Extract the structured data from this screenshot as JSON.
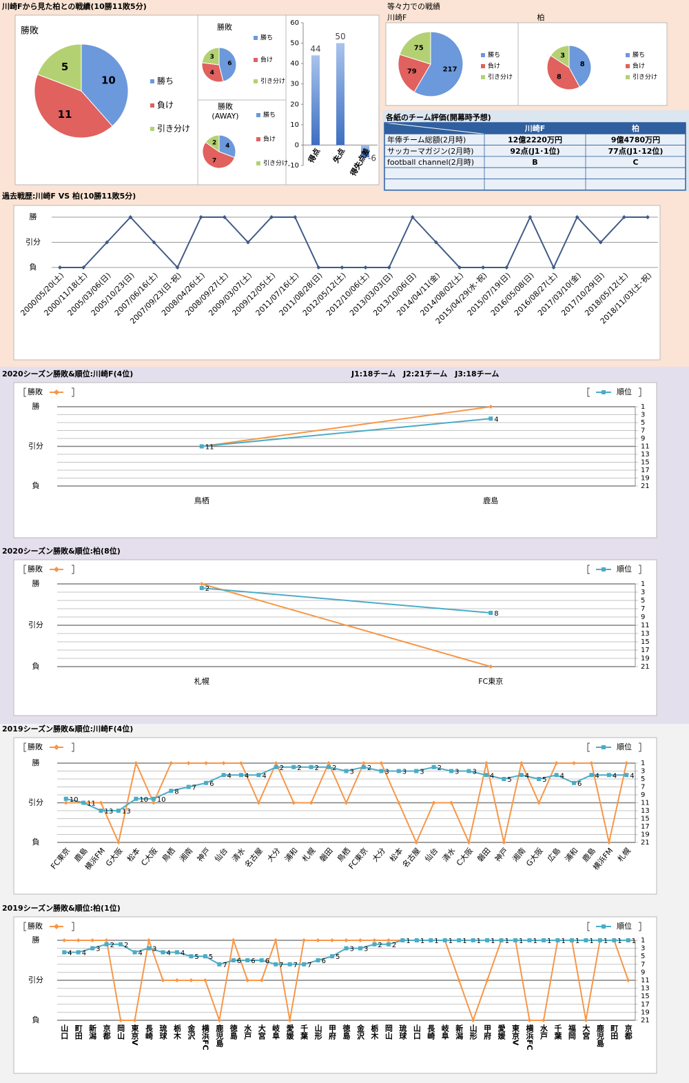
{
  "headings": [
    "川崎Fから見た柏との戦績(10勝11敗5分)",
    "等々力での戦績"
  ],
  "table": {
    "title": "各紙のチーム評価(開幕時予想)",
    "columns": [
      "川崎F",
      "柏"
    ],
    "rows": [
      [
        "年俸チーム総額(2月時)",
        "12億2220万円",
        "9億4780万円"
      ],
      [
        "サッカーマガジン(2月時)",
        "92点(J1･1位)",
        "77点(J1･12位)"
      ],
      [
        "football channel(2月時)",
        "B",
        "C"
      ]
    ]
  },
  "chart_data": [
    {
      "type": "pie",
      "title": "勝敗",
      "categories": [
        "勝ち",
        "負け",
        "引き分け"
      ],
      "values": [
        10,
        11,
        5
      ],
      "colors": [
        "#6c98dc",
        "#e0615e",
        "#b3d173"
      ]
    },
    {
      "type": "pie",
      "title": "勝敗",
      "categories": [
        "勝ち",
        "負け",
        "引き分け"
      ],
      "values": [
        6,
        4,
        3
      ],
      "colors": [
        "#6c98dc",
        "#e0615e",
        "#b3d173"
      ]
    },
    {
      "type": "pie",
      "title": "勝敗",
      "subtitle": "(AWAY)",
      "categories": [
        "勝ち",
        "負け",
        "引き分け"
      ],
      "values": [
        4,
        7,
        2
      ],
      "colors": [
        "#6c98dc",
        "#e0615e",
        "#b3d173"
      ]
    },
    {
      "type": "bar",
      "categories": [
        "得点",
        "失点",
        "得失点差"
      ],
      "values": [
        44,
        50,
        -6
      ],
      "color": "#4f81bd",
      "ylim": [
        -10,
        60
      ],
      "yticks": [
        -10,
        0,
        10,
        20,
        30,
        40,
        50,
        60
      ],
      "grid": false
    },
    {
      "type": "pie",
      "title": "川崎F",
      "categories": [
        "勝ち",
        "負け",
        "引き分け"
      ],
      "values": [
        217,
        79,
        75
      ],
      "colors": [
        "#6c98dc",
        "#e0615e",
        "#b3d173"
      ]
    },
    {
      "type": "pie",
      "title": "柏",
      "categories": [
        "勝ち",
        "負け",
        "引き分け"
      ],
      "values": [
        8,
        8,
        3
      ],
      "colors": [
        "#6c98dc",
        "#e0615e",
        "#b3d173"
      ]
    },
    {
      "type": "line",
      "title": "過去戦歴:川崎F VS 柏(10勝11敗5分)",
      "categories": [
        "2000/05/20(土)",
        "2000/11/18(土)",
        "2005/03/06(日)",
        "2005/10/23(日)",
        "2007/06/16(土)",
        "2007/09/23(日･祝)",
        "2008/04/26(土)",
        "2008/09/27(土)",
        "2009/03/07(土)",
        "2009/12/05(土)",
        "2011/07/16(土)",
        "2011/08/28(日)",
        "2012/05/12(土)",
        "2012/10/06(土)",
        "2013/03/03(日)",
        "2013/10/06(日)",
        "2014/04/11(金)",
        "2014/08/02(土)",
        "2015/04/29(水･祝)",
        "2015/07/19(日)",
        "2016/05/08(日)",
        "2016/08/27(土)",
        "2017/03/10(金)",
        "2017/10/29(日)",
        "2018/05/12(土)",
        "2018/11/03(土･祝)"
      ],
      "values": [
        -1,
        -1,
        0,
        1,
        0,
        -1,
        1,
        1,
        0,
        1,
        1,
        -1,
        -1,
        -1,
        -1,
        1,
        0,
        -1,
        -1,
        -1,
        1,
        -1,
        1,
        0,
        1,
        1
      ],
      "color": "#3f5a86",
      "ylim": [
        -1,
        1
      ],
      "yticks": [
        {
          "value": 1,
          "label": "勝"
        },
        {
          "value": 0,
          "label": "引分"
        },
        {
          "value": -1,
          "label": "負"
        }
      ],
      "grid": true
    },
    {
      "type": "season",
      "title": "2020シーズン勝敗&順位:川崎F(4位)",
      "annotation": "J1:18チーム　J2:21チーム　J3:18チーム",
      "categories": [
        "鳥栖",
        "鹿島"
      ],
      "series": [
        {
          "name": "勝敗",
          "color": "#f79646",
          "values": [
            0,
            1
          ]
        },
        {
          "name": "順位",
          "color": "#4bacc6",
          "values": [
            11,
            4
          ],
          "axis": "y2"
        }
      ],
      "ylim": [
        -1,
        1
      ],
      "yticks": [
        {
          "value": 1,
          "label": "勝"
        },
        {
          "value": 0,
          "label": "引分"
        },
        {
          "value": -1,
          "label": "負"
        }
      ],
      "y2lim": [
        1,
        21
      ],
      "y2_inverted": true,
      "y2ticks": [
        1,
        3,
        5,
        7,
        9,
        11,
        13,
        15,
        17,
        19,
        21
      ]
    },
    {
      "type": "season",
      "title": "2020シーズン勝敗&順位:柏(8位)",
      "categories": [
        "札幌",
        "FC東京"
      ],
      "series": [
        {
          "name": "勝敗",
          "color": "#f79646",
          "values": [
            1,
            -1
          ]
        },
        {
          "name": "順位",
          "color": "#4bacc6",
          "values": [
            2,
            8
          ],
          "axis": "y2"
        }
      ],
      "ylim": [
        -1,
        1
      ],
      "yticks": [
        {
          "value": 1,
          "label": "勝"
        },
        {
          "value": 0,
          "label": "引分"
        },
        {
          "value": -1,
          "label": "負"
        }
      ],
      "y2lim": [
        1,
        21
      ],
      "y2_inverted": true,
      "y2ticks": [
        1,
        3,
        5,
        7,
        9,
        11,
        13,
        15,
        17,
        19,
        21
      ]
    },
    {
      "type": "season",
      "title": "2019シーズン勝敗&順位:川崎F(4位)",
      "categories": [
        "FC東京",
        "鹿島",
        "横浜FM",
        "G大阪",
        "松本",
        "C大阪",
        "鳥栖",
        "湘南",
        "神戸",
        "仙台",
        "清水",
        "名古屋",
        "大分",
        "浦和",
        "札幌",
        "磐田",
        "鳥栖",
        "FC東京",
        "大分",
        "松本",
        "名古屋",
        "仙台",
        "清水",
        "C大阪",
        "磐田",
        "神戸",
        "湘南",
        "G大阪",
        "広島",
        "浦和",
        "鹿島",
        "横浜FM",
        "札幌"
      ],
      "series": [
        {
          "name": "勝敗",
          "color": "#f79646",
          "values": [
            0,
            0,
            0,
            -1,
            1,
            0,
            1,
            1,
            1,
            1,
            1,
            0,
            1,
            0,
            0,
            1,
            0,
            1,
            1,
            0,
            -1,
            0,
            0,
            -1,
            1,
            -1,
            1,
            0,
            1,
            1,
            1,
            -1,
            1
          ]
        },
        {
          "name": "順位",
          "color": "#4bacc6",
          "values": [
            10,
            11,
            13,
            13,
            10,
            10,
            8,
            7,
            6,
            4,
            4,
            4,
            2,
            2,
            2,
            2,
            3,
            2,
            3,
            3,
            3,
            2,
            3,
            3,
            4,
            5,
            4,
            5,
            4,
            6,
            4,
            4,
            4
          ],
          "axis": "y2"
        }
      ],
      "ylim": [
        -1,
        1
      ],
      "yticks": [
        {
          "value": 1,
          "label": "勝"
        },
        {
          "value": 0,
          "label": "引分"
        },
        {
          "value": -1,
          "label": "負"
        }
      ],
      "y2lim": [
        1,
        21
      ],
      "y2_inverted": true,
      "y2ticks": [
        1,
        3,
        5,
        7,
        9,
        11,
        13,
        15,
        17,
        19,
        21
      ]
    },
    {
      "type": "season",
      "title": "2019シーズン勝敗&順位:柏(1位)",
      "categories": [
        "山口",
        "町田",
        "新潟",
        "京都",
        "岡山",
        "東京V",
        "長崎",
        "琉球",
        "栃木",
        "金沢",
        "横浜FC",
        "鹿児島",
        "徳島",
        "水戸",
        "大宮",
        "岐阜",
        "愛媛",
        "千葉",
        "山形",
        "甲府",
        "徳島",
        "金沢",
        "栃木",
        "岡山",
        "琉球",
        "山口",
        "長崎",
        "岐阜",
        "新潟",
        "山形",
        "甲府",
        "愛媛",
        "東京V",
        "横浜FC",
        "水戸",
        "千葉",
        "福岡",
        "大宮",
        "鹿児島",
        "町田",
        "京都"
      ],
      "series": [
        {
          "name": "勝敗",
          "color": "#f79646",
          "values": [
            1,
            1,
            1,
            1,
            -1,
            -1,
            1,
            0,
            0,
            0,
            0,
            -1,
            1,
            0,
            0,
            1,
            -1,
            1,
            1,
            1,
            1,
            1,
            1,
            1,
            1,
            1,
            1,
            1,
            0,
            -1,
            0,
            1,
            1,
            -1,
            -1,
            1,
            1,
            -1,
            1,
            1,
            0
          ]
        },
        {
          "name": "順位",
          "color": "#4bacc6",
          "values": [
            4,
            4,
            3,
            2,
            2,
            4,
            3,
            4,
            4,
            5,
            5,
            7,
            6,
            6,
            6,
            7,
            7,
            7,
            6,
            5,
            3,
            3,
            2,
            2,
            1,
            1,
            1,
            1,
            1,
            1,
            1,
            1,
            1,
            1,
            1,
            1,
            1,
            1,
            1,
            1,
            1
          ],
          "axis": "y2"
        }
      ],
      "ylim": [
        -1,
        1
      ],
      "yticks": [
        {
          "value": 1,
          "label": "勝"
        },
        {
          "value": 0,
          "label": "引分"
        },
        {
          "value": -1,
          "label": "負"
        }
      ],
      "y2lim": [
        1,
        21
      ],
      "y2_inverted": true,
      "y2ticks": [
        1,
        3,
        5,
        7,
        9,
        11,
        13,
        15,
        17,
        19,
        21
      ]
    }
  ]
}
